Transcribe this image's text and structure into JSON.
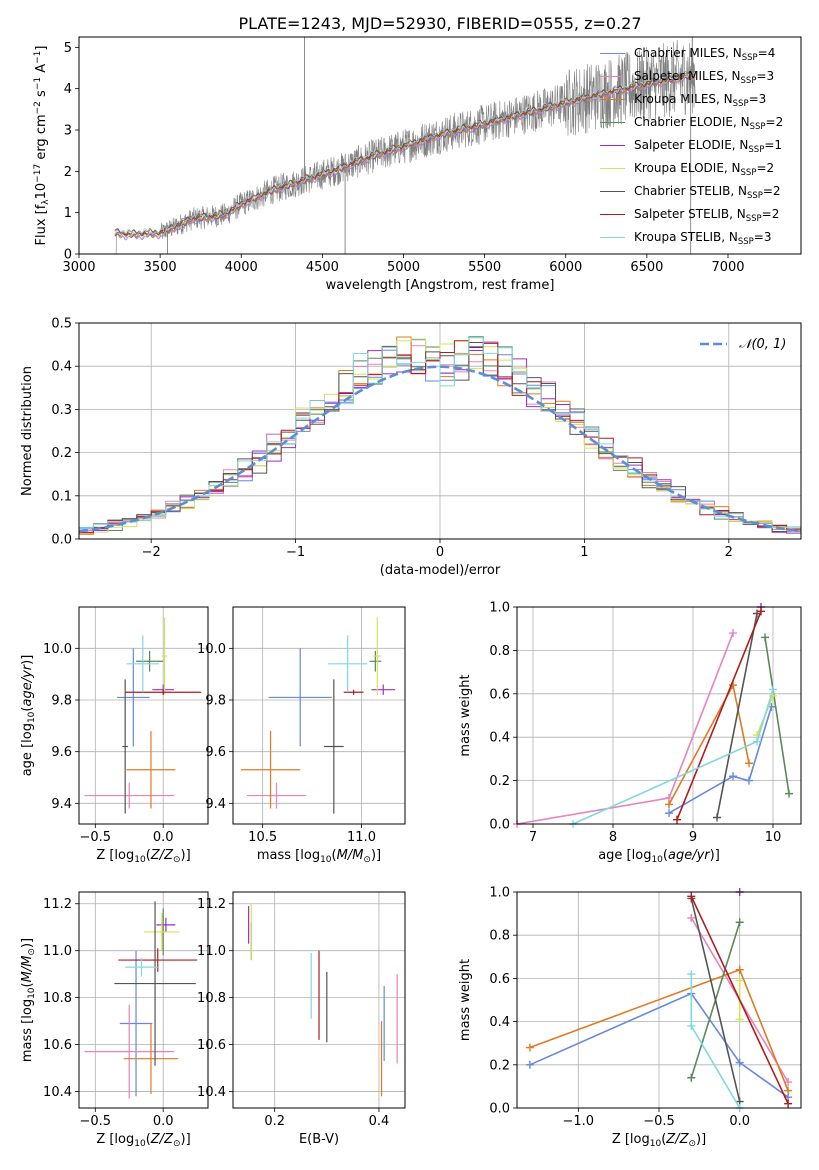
{
  "figure_title": "PLATE=1243, MJD=52930, FIBERID=0555, z=0.27",
  "colors": {
    "chabrier_miles": "#6688dd",
    "salpeter_miles": "#e883bb",
    "kroupa_miles": "#e07a22",
    "chabrier_elodie": "#5a8a5a",
    "salpeter_elodie": "#9b30c0",
    "kroupa_elodie": "#d4e35a",
    "chabrier_stelib": "#555555",
    "salpeter_stelib": "#b01c1c",
    "kroupa_stelib": "#80d8e0",
    "spectrum": "#808080",
    "normal": "#5b8ed8"
  },
  "chart_data": [
    {
      "id": "spectrum",
      "type": "line",
      "title": "PLATE=1243, MJD=52930, FIBERID=0555, z=0.27",
      "xlabel": "wavelength [Angstrom, rest frame]",
      "ylabel": "Flux [f_λ 10^-17 erg cm^-2 s^-1 A^-1]",
      "xlim": [
        3000,
        7450
      ],
      "ylim": [
        0,
        5.25
      ],
      "xticks": [
        3000,
        3500,
        4000,
        4500,
        5000,
        5500,
        6000,
        6500,
        7000
      ],
      "xtick_labels": [
        "3000",
        "3500",
        "4000",
        "4500",
        "5000",
        "5500",
        "6000",
        "6500",
        "7000"
      ],
      "yticks": [
        0,
        1,
        2,
        3,
        4,
        5
      ],
      "ytick_labels": [
        "0",
        "1",
        "2",
        "3",
        "4",
        "5"
      ],
      "grid": false,
      "legend_position": "top-right",
      "legend": [
        {
          "label": "Chabrier MILES, N",
          "sub": "SSP",
          "tail": "=4",
          "color": "#6688dd"
        },
        {
          "label": "Salpeter MILES, N",
          "sub": "SSP",
          "tail": "=3",
          "color": "#e883bb"
        },
        {
          "label": "Kroupa MILES, N",
          "sub": "SSP",
          "tail": "=3",
          "color": "#e07a22"
        },
        {
          "label": "Chabrier ELODIE, N",
          "sub": "SSP",
          "tail": "=2",
          "color": "#5a8a5a"
        },
        {
          "label": "Salpeter ELODIE, N",
          "sub": "SSP",
          "tail": "=1",
          "color": "#9b30c0"
        },
        {
          "label": "Kroupa ELODIE, N",
          "sub": "SSP",
          "tail": "=2",
          "color": "#d4e35a"
        },
        {
          "label": "Chabrier STELIB, N",
          "sub": "SSP",
          "tail": "=2",
          "color": "#555555"
        },
        {
          "label": "Salpeter STELIB, N",
          "sub": "SSP",
          "tail": "=2",
          "color": "#b01c1c"
        },
        {
          "label": "Kroupa STELIB, N",
          "sub": "SSP",
          "tail": "=3",
          "color": "#80d8e0"
        }
      ],
      "spectrum_range": [
        3220,
        6800
      ],
      "model_anchor_points": [
        [
          3220,
          0.52
        ],
        [
          3300,
          0.47
        ],
        [
          3500,
          0.5
        ],
        [
          3700,
          0.85
        ],
        [
          3900,
          0.95
        ],
        [
          4000,
          1.2
        ],
        [
          4200,
          1.55
        ],
        [
          4400,
          1.8
        ],
        [
          4600,
          2.05
        ],
        [
          4800,
          2.35
        ],
        [
          5000,
          2.6
        ],
        [
          5200,
          2.85
        ],
        [
          5500,
          3.15
        ],
        [
          5800,
          3.45
        ],
        [
          6000,
          3.65
        ],
        [
          6200,
          3.85
        ],
        [
          6500,
          4.1
        ],
        [
          6800,
          4.35
        ]
      ]
    },
    {
      "id": "residuals",
      "type": "line",
      "xlabel": "(data-model)/error",
      "ylabel": "Normed distribution",
      "xlim": [
        -2.5,
        2.5
      ],
      "ylim": [
        0,
        0.5
      ],
      "xticks": [
        -2,
        -1,
        0,
        1,
        2
      ],
      "xtick_labels": [
        "−2",
        "−1",
        "0",
        "1",
        "2"
      ],
      "yticks": [
        0.0,
        0.1,
        0.2,
        0.3,
        0.4,
        0.5
      ],
      "ytick_labels": [
        "0.0",
        "0.1",
        "0.2",
        "0.3",
        "0.4",
        "0.5"
      ],
      "grid": true,
      "legend_position": "top-right",
      "legend": [
        {
          "label": "𝒩(0, 1)",
          "color": "#5b8ed8"
        }
      ],
      "bin_width": 0.1,
      "series": [
        {
          "name": "Chabrier MILES",
          "color": "#6688dd"
        },
        {
          "name": "Salpeter MILES",
          "color": "#e883bb"
        },
        {
          "name": "Kroupa MILES",
          "color": "#e07a22"
        },
        {
          "name": "Chabrier ELODIE",
          "color": "#5a8a5a"
        },
        {
          "name": "Salpeter ELODIE",
          "color": "#9b30c0"
        },
        {
          "name": "Kroupa ELODIE",
          "color": "#d4e35a"
        },
        {
          "name": "Chabrier STELIB",
          "color": "#555555"
        },
        {
          "name": "Salpeter STELIB",
          "color": "#b01c1c"
        },
        {
          "name": "Kroupa STELIB",
          "color": "#80d8e0"
        }
      ]
    },
    {
      "id": "age_vs_Z",
      "type": "scatter",
      "xlabel": "Z [log10(Z/Z⊙)]",
      "ylabel": "age [log10(age/yr)]",
      "xlim": [
        -0.62,
        0.33
      ],
      "ylim": [
        9.32,
        10.16
      ],
      "xticks": [
        -0.5,
        0.0
      ],
      "xtick_labels": [
        "−0.5",
        "0.0"
      ],
      "yticks": [
        9.4,
        9.6,
        9.8,
        10.0
      ],
      "ytick_labels": [
        "9.4",
        "9.6",
        "9.8",
        "10.0"
      ],
      "grid": true,
      "points": [
        {
          "color": "#6688dd",
          "x": -0.22,
          "y": 9.81,
          "xerr": 0.12,
          "yerr": 0.19
        },
        {
          "color": "#e883bb",
          "x": -0.25,
          "y": 9.43,
          "xerr": 0.33,
          "yerr": 0.05
        },
        {
          "color": "#e07a22",
          "x": -0.09,
          "y": 9.53,
          "xerr": 0.18,
          "yerr": 0.15
        },
        {
          "color": "#5a8a5a",
          "x": -0.1,
          "y": 9.95,
          "xerr": 0.1,
          "yerr": 0.04
        },
        {
          "color": "#9b30c0",
          "x": 0.0,
          "y": 9.84,
          "xerr": 0.08,
          "yerr": 0.02
        },
        {
          "color": "#d4e35a",
          "x": 0.01,
          "y": 9.97,
          "xerr": 0.02,
          "yerr": 0.15
        },
        {
          "color": "#555555",
          "x": -0.28,
          "y": 9.62,
          "xerr": 0.02,
          "yerr": 0.26
        },
        {
          "color": "#b01c1c",
          "x": 0.0,
          "y": 9.83,
          "xerr": 0.28,
          "yerr": 0.01
        },
        {
          "color": "#80d8e0",
          "x": -0.15,
          "y": 9.94,
          "xerr": 0.12,
          "yerr": 0.11
        }
      ]
    },
    {
      "id": "age_vs_mass",
      "type": "scatter",
      "xlabel": "mass [log10(M/M⊙)]",
      "ylabel": "",
      "xlim": [
        10.35,
        11.22
      ],
      "ylim": [
        9.32,
        10.16
      ],
      "xticks": [
        10.5,
        11.0
      ],
      "xtick_labels": [
        "10.5",
        "11.0"
      ],
      "yticks": [
        9.4,
        9.6,
        9.8,
        10.0
      ],
      "ytick_labels": [
        "9.4",
        "9.6",
        "9.8",
        "10.0"
      ],
      "grid": true,
      "points": [
        {
          "color": "#6688dd",
          "x": 10.69,
          "y": 9.81,
          "xerr": 0.16,
          "yerr": 0.19
        },
        {
          "color": "#e883bb",
          "x": 10.57,
          "y": 9.43,
          "xerr": 0.15,
          "yerr": 0.05
        },
        {
          "color": "#e07a22",
          "x": 10.54,
          "y": 9.53,
          "xerr": 0.15,
          "yerr": 0.15
        },
        {
          "color": "#5a8a5a",
          "x": 11.07,
          "y": 9.95,
          "xerr": 0.03,
          "yerr": 0.04
        },
        {
          "color": "#9b30c0",
          "x": 11.11,
          "y": 9.84,
          "xerr": 0.06,
          "yerr": 0.02
        },
        {
          "color": "#d4e35a",
          "x": 11.08,
          "y": 9.97,
          "xerr": 0.02,
          "yerr": 0.15
        },
        {
          "color": "#555555",
          "x": 10.86,
          "y": 9.62,
          "xerr": 0.05,
          "yerr": 0.26
        },
        {
          "color": "#b01c1c",
          "x": 10.96,
          "y": 9.83,
          "xerr": 0.05,
          "yerr": 0.01
        },
        {
          "color": "#80d8e0",
          "x": 10.93,
          "y": 9.94,
          "xerr": 0.1,
          "yerr": 0.11
        }
      ]
    },
    {
      "id": "weight_vs_age",
      "type": "line",
      "xlabel": "age [log10(age/yr)]",
      "ylabel": "mass weight",
      "xlim": [
        6.8,
        10.35
      ],
      "ylim": [
        0,
        1.0
      ],
      "xticks": [
        7,
        8,
        9,
        10
      ],
      "xtick_labels": [
        "7",
        "8",
        "9",
        "10"
      ],
      "yticks": [
        0.0,
        0.2,
        0.4,
        0.6,
        0.8,
        1.0
      ],
      "ytick_labels": [
        "0.0",
        "0.2",
        "0.4",
        "0.6",
        "0.8",
        "1.0"
      ],
      "grid": true,
      "series": [
        {
          "color": "#6688dd",
          "x": [
            8.7,
            9.5,
            9.7,
            9.98
          ],
          "y": [
            0.05,
            0.22,
            0.2,
            0.54
          ]
        },
        {
          "color": "#e883bb",
          "x": [
            6.8,
            8.7,
            9.5
          ],
          "y": [
            0.0,
            0.12,
            0.88
          ]
        },
        {
          "color": "#e07a22",
          "x": [
            8.7,
            9.5,
            9.7
          ],
          "y": [
            0.09,
            0.64,
            0.28
          ]
        },
        {
          "color": "#5a8a5a",
          "x": [
            9.9,
            10.2
          ],
          "y": [
            0.86,
            0.14
          ]
        },
        {
          "color": "#9b30c0",
          "x": [
            9.85
          ],
          "y": [
            1.0
          ]
        },
        {
          "color": "#d4e35a",
          "x": [
            9.8,
            10.0
          ],
          "y": [
            0.41,
            0.59
          ]
        },
        {
          "color": "#555555",
          "x": [
            9.3,
            9.8
          ],
          "y": [
            0.03,
            0.97
          ]
        },
        {
          "color": "#b01c1c",
          "x": [
            8.8,
            9.85
          ],
          "y": [
            0.02,
            0.98
          ]
        },
        {
          "color": "#80d8e0",
          "x": [
            7.5,
            9.8,
            10.0
          ],
          "y": [
            0.0,
            0.38,
            0.62
          ]
        }
      ]
    },
    {
      "id": "mass_vs_Z",
      "type": "scatter",
      "xlabel": "Z [log10(Z/Z⊙)]",
      "ylabel": "mass [log10(M/M⊙)]",
      "xlim": [
        -0.62,
        0.33
      ],
      "ylim": [
        10.33,
        11.25
      ],
      "xticks": [
        -0.5,
        0.0
      ],
      "xtick_labels": [
        "−0.5",
        "0.0"
      ],
      "yticks": [
        10.4,
        10.6,
        10.8,
        11.0,
        11.2
      ],
      "ytick_labels": [
        "10.4",
        "10.6",
        "10.8",
        "11.0",
        "11.2"
      ],
      "grid": true,
      "points": [
        {
          "color": "#6688dd",
          "x": -0.2,
          "y": 10.69,
          "xerr": 0.12,
          "yerr": 0.31
        },
        {
          "color": "#e883bb",
          "x": -0.25,
          "y": 10.57,
          "xerr": 0.33,
          "yerr": 0.2
        },
        {
          "color": "#e07a22",
          "x": -0.09,
          "y": 10.54,
          "xerr": 0.2,
          "yerr": 0.15
        },
        {
          "color": "#5a8a5a",
          "x": 0.0,
          "y": 11.08,
          "xerr": 0.02,
          "yerr": 0.1
        },
        {
          "color": "#9b30c0",
          "x": 0.02,
          "y": 11.11,
          "xerr": 0.07,
          "yerr": 0.03
        },
        {
          "color": "#d4e35a",
          "x": -0.01,
          "y": 11.08,
          "xerr": 0.13,
          "yerr": 0.08
        },
        {
          "color": "#555555",
          "x": -0.06,
          "y": 10.86,
          "xerr": 0.3,
          "yerr": 0.35
        },
        {
          "color": "#b01c1c",
          "x": -0.04,
          "y": 10.96,
          "xerr": 0.29,
          "yerr": 0.05
        },
        {
          "color": "#80d8e0",
          "x": -0.16,
          "y": 10.93,
          "xerr": 0.12,
          "yerr": 0.04
        }
      ]
    },
    {
      "id": "mass_vs_ebv",
      "type": "scatter",
      "xlabel": "E(B-V)",
      "ylabel": "",
      "xlim": [
        0.12,
        0.45
      ],
      "ylim": [
        10.33,
        11.25
      ],
      "xticks": [
        0.2,
        0.4
      ],
      "xtick_labels": [
        "0.2",
        "0.4"
      ],
      "yticks": [
        10.4,
        10.6,
        10.8,
        11.0,
        11.2
      ],
      "ytick_labels": [
        "10.4",
        "10.6",
        "10.8",
        "11.0",
        "11.2"
      ],
      "grid": true,
      "points": [
        {
          "color": "#6688dd",
          "x": 0.41,
          "y": 10.69,
          "xerr": 0.0,
          "yerr": 0.16
        },
        {
          "color": "#e883bb",
          "x": 0.435,
          "y": 10.71,
          "xerr": 0.0,
          "yerr": 0.19
        },
        {
          "color": "#e07a22",
          "x": 0.405,
          "y": 10.54,
          "xerr": 0.0,
          "yerr": 0.16
        },
        {
          "color": "#5a8a5a",
          "x": 0.155,
          "y": 11.04,
          "xerr": 0.0,
          "yerr": 0.08
        },
        {
          "color": "#9b30c0",
          "x": 0.15,
          "y": 11.11,
          "xerr": 0.0,
          "yerr": 0.08
        },
        {
          "color": "#d4e35a",
          "x": 0.155,
          "y": 11.08,
          "xerr": 0.0,
          "yerr": 0.12
        },
        {
          "color": "#555555",
          "x": 0.3,
          "y": 10.76,
          "xerr": 0.0,
          "yerr": 0.15
        },
        {
          "color": "#b01c1c",
          "x": 0.285,
          "y": 10.81,
          "xerr": 0.0,
          "yerr": 0.19
        },
        {
          "color": "#80d8e0",
          "x": 0.27,
          "y": 10.85,
          "xerr": 0.0,
          "yerr": 0.14
        }
      ]
    },
    {
      "id": "weight_vs_Z",
      "type": "line",
      "xlabel": "Z [log10(Z/Z⊙)]",
      "ylabel": "mass weight",
      "xlim": [
        -1.38,
        0.38
      ],
      "ylim": [
        0,
        1.0
      ],
      "xticks": [
        -1.0,
        -0.5,
        0.0
      ],
      "xtick_labels": [
        "−1.0",
        "−0.5",
        "0.0"
      ],
      "yticks": [
        0.0,
        0.2,
        0.4,
        0.6,
        0.8,
        1.0
      ],
      "ytick_labels": [
        "0.0",
        "0.2",
        "0.4",
        "0.6",
        "0.8",
        "1.0"
      ],
      "grid": true,
      "series": [
        {
          "color": "#6688dd",
          "x": [
            -1.3,
            -0.3,
            0.0,
            0.3
          ],
          "y": [
            0.2,
            0.53,
            0.21,
            0.05
          ]
        },
        {
          "color": "#e883bb",
          "x": [
            -0.3,
            0.3
          ],
          "y": [
            0.88,
            0.12
          ]
        },
        {
          "color": "#e07a22",
          "x": [
            -1.3,
            0.0,
            0.3
          ],
          "y": [
            0.28,
            0.64,
            0.08
          ]
        },
        {
          "color": "#5a8a5a",
          "x": [
            -0.3,
            0.0
          ],
          "y": [
            0.14,
            0.86
          ]
        },
        {
          "color": "#9b30c0",
          "x": [
            0.0
          ],
          "y": [
            1.0
          ]
        },
        {
          "color": "#d4e35a",
          "x": [
            0.0,
            0.0
          ],
          "y": [
            0.41,
            0.59
          ]
        },
        {
          "color": "#555555",
          "x": [
            -0.3,
            0.0
          ],
          "y": [
            0.97,
            0.03
          ]
        },
        {
          "color": "#b01c1c",
          "x": [
            -0.3,
            0.3
          ],
          "y": [
            0.98,
            0.02
          ]
        },
        {
          "color": "#80d8e0",
          "x": [
            -0.3,
            -0.3,
            0.0
          ],
          "y": [
            0.62,
            0.38,
            0.0
          ]
        }
      ]
    }
  ]
}
